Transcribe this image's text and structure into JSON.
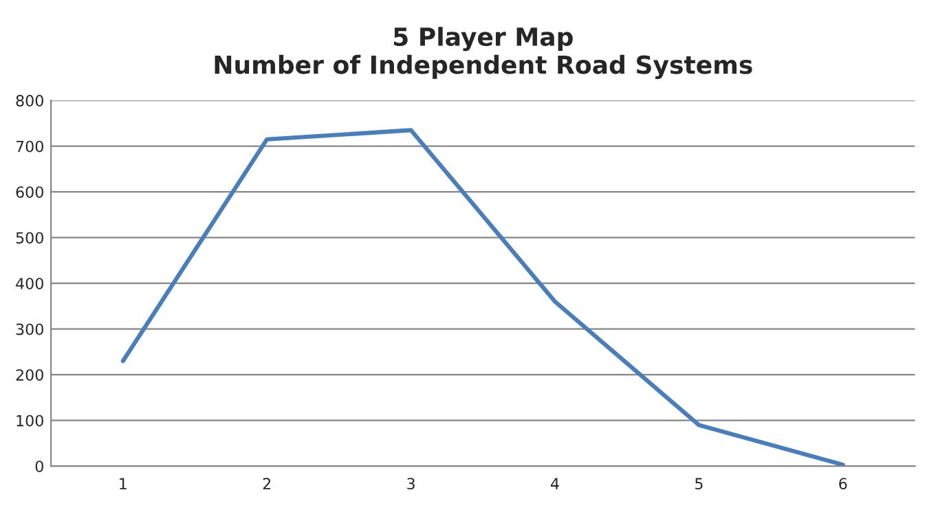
{
  "chart_data": {
    "type": "line",
    "title": "5 Player Map\nNumber of Independent Road Systems",
    "categories": [
      "1",
      "2",
      "3",
      "4",
      "5",
      "6"
    ],
    "series": [
      {
        "color": "#4a7ebb",
        "values": [
          230,
          715,
          735,
          360,
          90,
          3
        ]
      }
    ],
    "ylim": [
      0,
      800
    ],
    "yticks": [
      0,
      100,
      200,
      300,
      400,
      500,
      600,
      700,
      800
    ],
    "grid": "y",
    "legend": false,
    "marker": "none",
    "line_style": "solid"
  }
}
